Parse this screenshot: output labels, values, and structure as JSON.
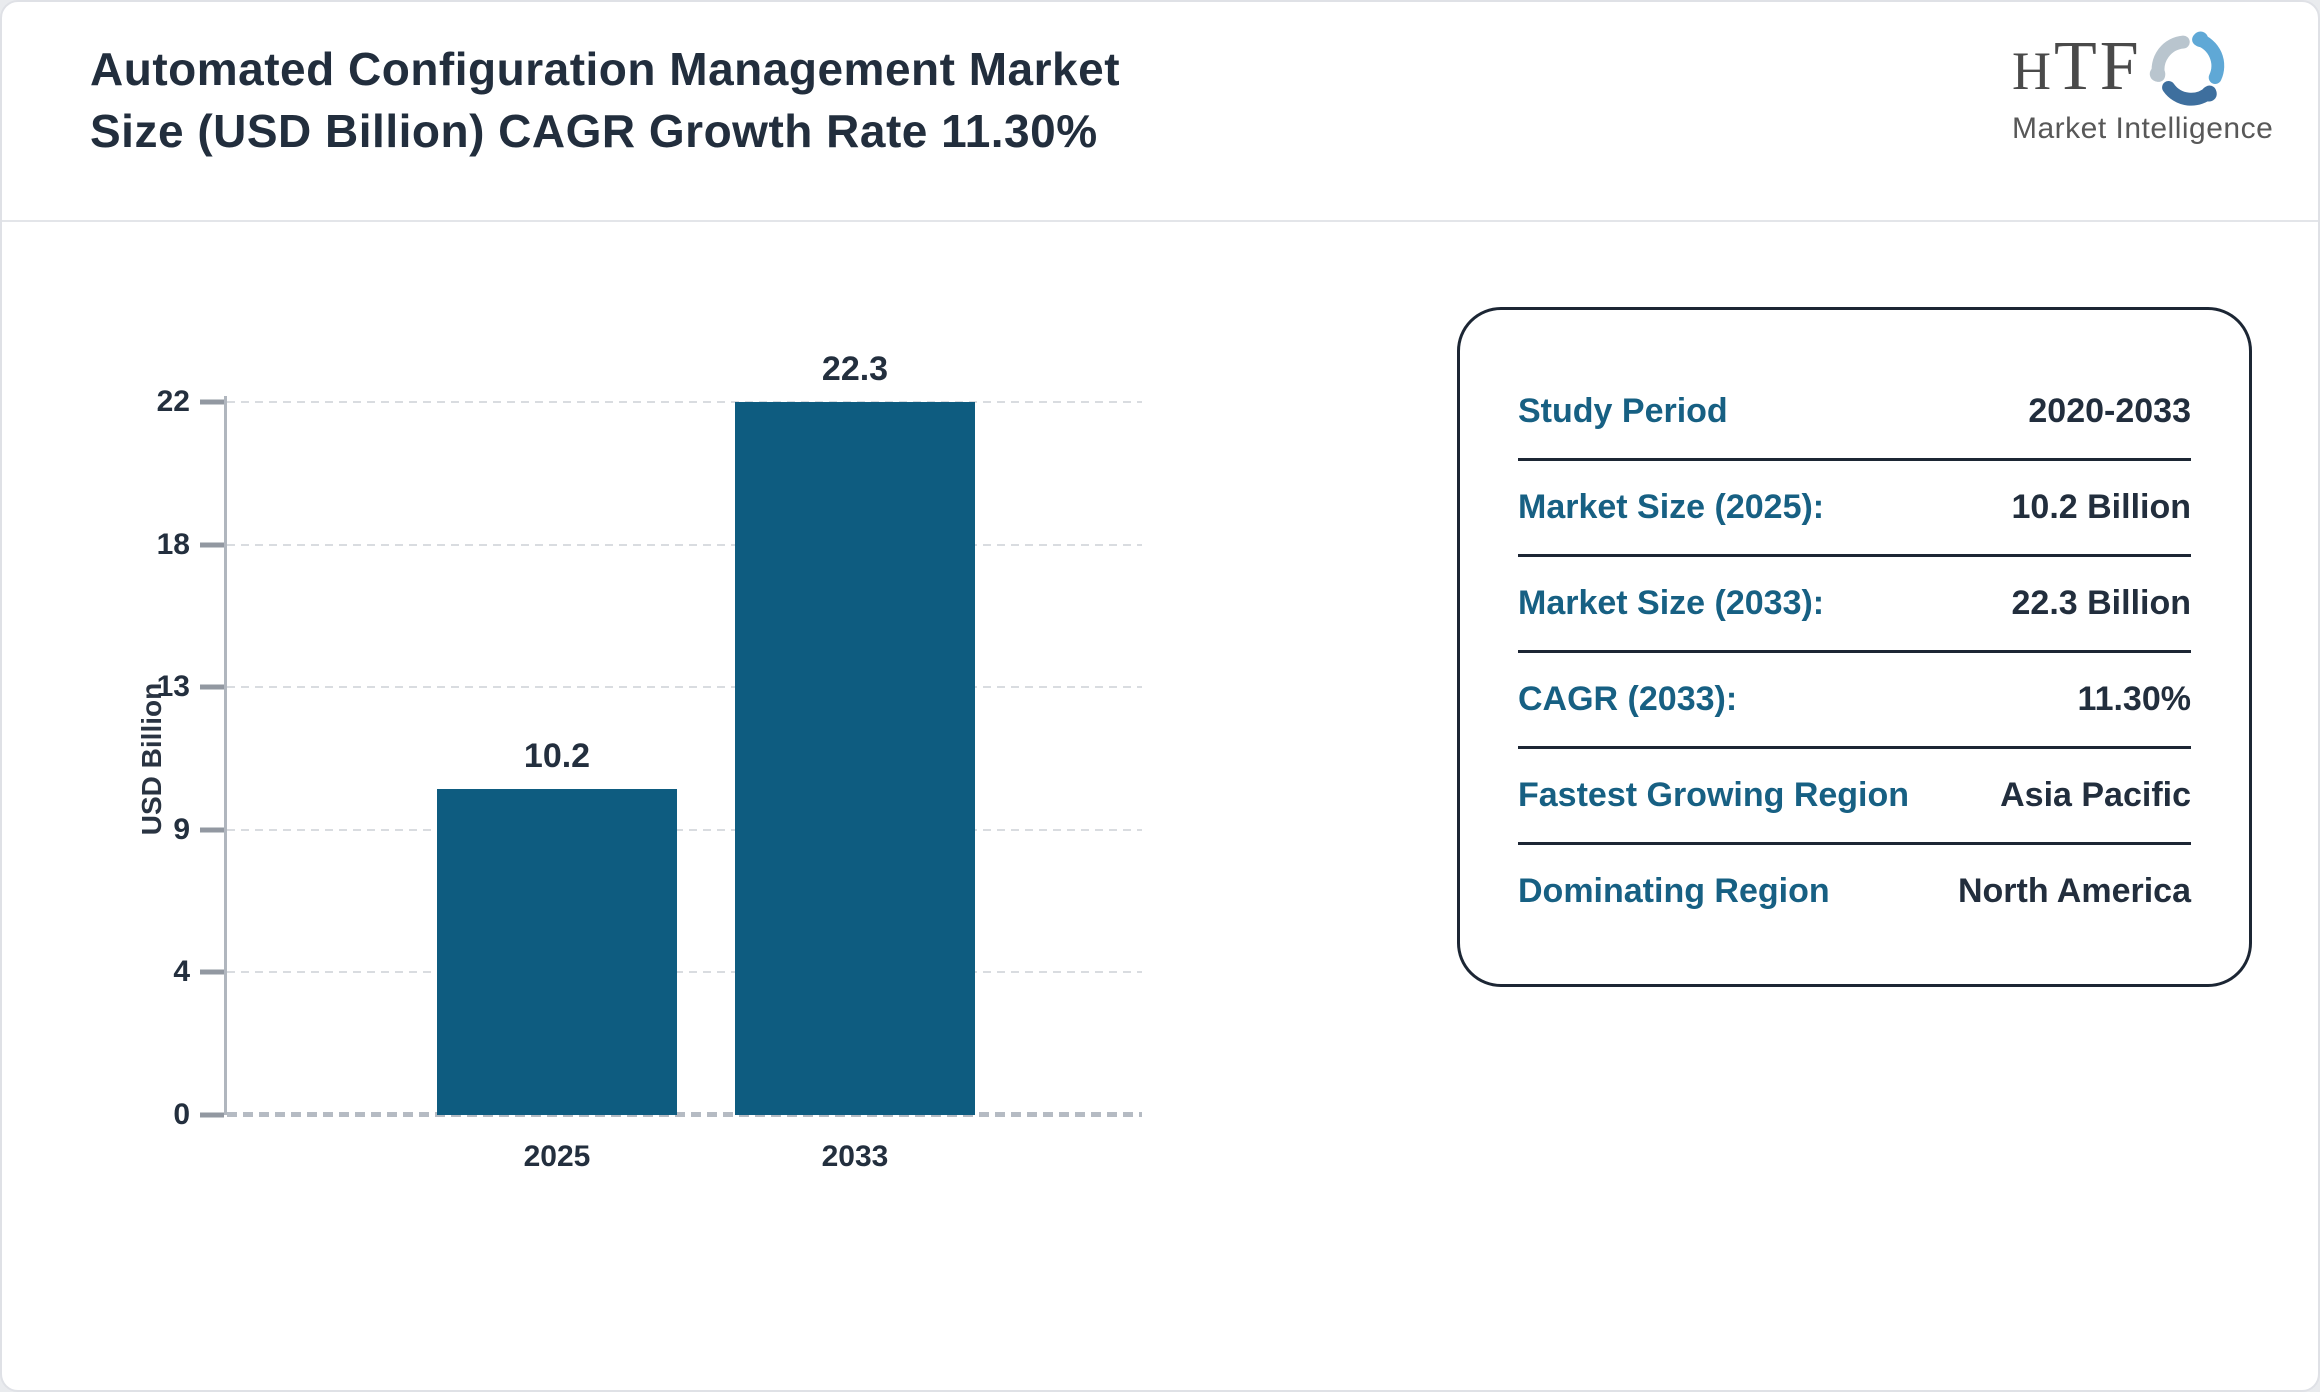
{
  "header": {
    "title_line1": "Automated Configuration Management Market",
    "title_line2": "Size (USD Billion) CAGR Growth Rate 11.30%",
    "logo": {
      "letters_h": "H",
      "letters_tf": "TF",
      "subtitle": "Market Intelligence"
    }
  },
  "chart_data": {
    "type": "bar",
    "title": "Automated Configuration Management Market Size (USD Billion) CAGR Growth Rate 11.30%",
    "categories": [
      "2025",
      "2033"
    ],
    "values": [
      10.2,
      22.3
    ],
    "xlabel": "",
    "ylabel": "USD Billion",
    "ylim": [
      0,
      22.3
    ],
    "ytick_labels": [
      "0",
      "4",
      "9",
      "13",
      "18",
      "22"
    ],
    "ytick_values": [
      0,
      4,
      9,
      13,
      18,
      22
    ],
    "yticks_evenly_spaced": true,
    "grid": "dashed horizontal gridlines",
    "legend": "none",
    "bar_color": "#0e5c80"
  },
  "panel": {
    "rows": [
      {
        "label": "Study Period",
        "value": "2020-2033"
      },
      {
        "label": "Market Size (2025):",
        "value": "10.2 Billion"
      },
      {
        "label": "Market Size (2033):",
        "value": "22.3 Billion"
      },
      {
        "label": "CAGR (2033):",
        "value": "11.30%"
      },
      {
        "label": "Fastest Growing Region",
        "value": "Asia Pacific"
      },
      {
        "label": "Dominating Region",
        "value": "North America"
      }
    ]
  },
  "colors": {
    "bar": "#0e5c80",
    "accent_teal": "#176083",
    "dark_text": "#222e3d",
    "panel_border": "#1c2634",
    "gridline": "#d9dce0",
    "axis": "#b0b6be"
  }
}
